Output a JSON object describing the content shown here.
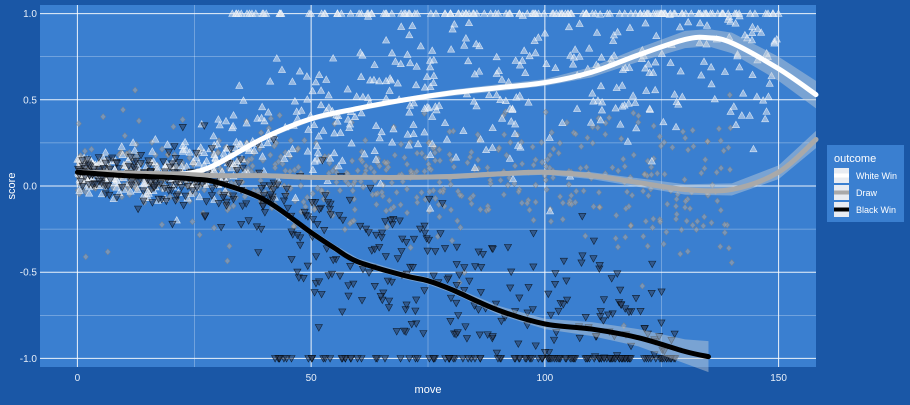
{
  "colors": {
    "background": "#1a57a6",
    "panel": "#3a7fd0",
    "grid": "#ffffff",
    "white_win": "#ffffff",
    "draw": "#a9a9a9",
    "black_win": "#000000",
    "ribbon": "#c8d0d8",
    "text": "#ffffff",
    "tick_text": "#e6eef8"
  },
  "chart_data": {
    "type": "scatter",
    "title": "",
    "xlabel": "move",
    "ylabel": "score",
    "xlim": [
      -8,
      158
    ],
    "ylim": [
      -1.05,
      1.05
    ],
    "x_ticks": [
      0,
      50,
      100,
      150
    ],
    "x_tick_labels": [
      "0",
      "50",
      "100",
      "150"
    ],
    "y_ticks": [
      -1.0,
      -0.5,
      0.0,
      0.5,
      1.0
    ],
    "y_tick_labels": [
      "-1.0",
      "-0.5",
      "0.0",
      "0.5",
      "1.0"
    ],
    "grid": true,
    "legend": {
      "title": "outcome",
      "placement": "right",
      "entries": [
        "White Win",
        "Draw",
        "Black Win"
      ]
    },
    "series": [
      {
        "name": "White Win",
        "marker": "triangle-up",
        "color": "#ffffff",
        "smooth": {
          "x": [
            0,
            10,
            20,
            25,
            30,
            40,
            50,
            60,
            70,
            80,
            90,
            100,
            110,
            120,
            130,
            135,
            140,
            150,
            158
          ],
          "y": [
            0.08,
            0.075,
            0.07,
            0.08,
            0.13,
            0.28,
            0.39,
            0.45,
            0.5,
            0.54,
            0.57,
            0.6,
            0.66,
            0.76,
            0.85,
            0.86,
            0.83,
            0.68,
            0.53
          ],
          "band": [
            0.01,
            0.01,
            0.01,
            0.01,
            0.01,
            0.012,
            0.015,
            0.015,
            0.015,
            0.018,
            0.02,
            0.02,
            0.03,
            0.04,
            0.05,
            0.05,
            0.06,
            0.07,
            0.08
          ]
        }
      },
      {
        "name": "Draw",
        "marker": "diamond",
        "color": "#a9a9a9",
        "smooth": {
          "x": [
            0,
            10,
            20,
            30,
            40,
            50,
            60,
            70,
            80,
            90,
            100,
            110,
            120,
            130,
            140,
            150,
            158
          ],
          "y": [
            0.08,
            0.075,
            0.07,
            0.06,
            0.06,
            0.05,
            0.05,
            0.05,
            0.055,
            0.07,
            0.08,
            0.06,
            0.02,
            -0.02,
            -0.02,
            0.08,
            0.27
          ],
          "band": [
            0.01,
            0.01,
            0.01,
            0.01,
            0.01,
            0.01,
            0.01,
            0.012,
            0.015,
            0.015,
            0.015,
            0.02,
            0.025,
            0.03,
            0.035,
            0.04,
            0.05
          ]
        }
      },
      {
        "name": "Black Win",
        "marker": "triangle-down",
        "color": "#000000",
        "smooth": {
          "x": [
            0,
            10,
            20,
            25,
            30,
            40,
            50,
            55,
            60,
            70,
            75,
            80,
            90,
            100,
            110,
            120,
            130,
            135
          ],
          "y": [
            0.08,
            0.06,
            0.05,
            0.04,
            0.02,
            -0.08,
            -0.27,
            -0.36,
            -0.44,
            -0.52,
            -0.55,
            -0.6,
            -0.72,
            -0.8,
            -0.83,
            -0.88,
            -0.96,
            -0.99
          ],
          "band": [
            0.01,
            0.01,
            0.01,
            0.01,
            0.012,
            0.015,
            0.02,
            0.02,
            0.02,
            0.02,
            0.02,
            0.02,
            0.025,
            0.03,
            0.04,
            0.05,
            0.07,
            0.09
          ]
        }
      }
    ]
  }
}
